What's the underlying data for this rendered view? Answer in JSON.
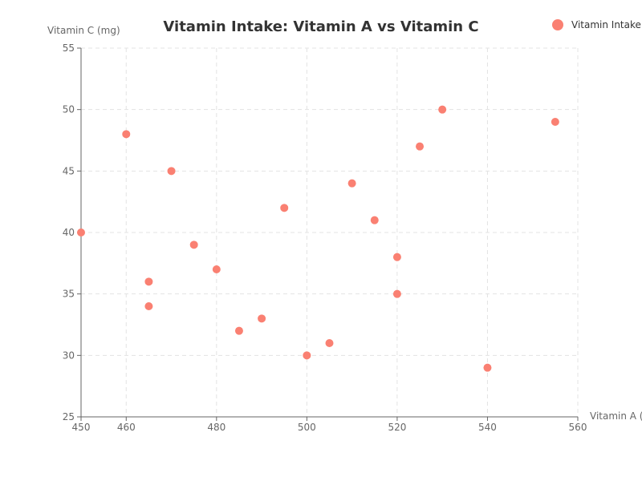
{
  "chart_data": {
    "type": "scatter",
    "title": "Vitamin Intake: Vitamin A vs Vitamin C",
    "xlabel": "Vitamin A (mcg)",
    "ylabel": "Vitamin C (mg)",
    "xlim": [
      450,
      560
    ],
    "ylim": [
      25,
      55
    ],
    "x_ticks": [
      450,
      460,
      480,
      500,
      520,
      540,
      560
    ],
    "y_ticks": [
      25,
      30,
      35,
      40,
      45,
      50,
      55
    ],
    "grid": true,
    "legend_position": "top-right",
    "series": [
      {
        "name": "Vitamin Intake",
        "color": "#fa8072",
        "points": [
          {
            "x": 450,
            "y": 40
          },
          {
            "x": 460,
            "y": 48
          },
          {
            "x": 465,
            "y": 36
          },
          {
            "x": 465,
            "y": 34
          },
          {
            "x": 470,
            "y": 45
          },
          {
            "x": 475,
            "y": 39
          },
          {
            "x": 480,
            "y": 37
          },
          {
            "x": 485,
            "y": 32
          },
          {
            "x": 490,
            "y": 33
          },
          {
            "x": 495,
            "y": 42
          },
          {
            "x": 500,
            "y": 30
          },
          {
            "x": 505,
            "y": 31
          },
          {
            "x": 510,
            "y": 44
          },
          {
            "x": 515,
            "y": 41
          },
          {
            "x": 520,
            "y": 38
          },
          {
            "x": 520,
            "y": 35
          },
          {
            "x": 525,
            "y": 47
          },
          {
            "x": 530,
            "y": 50
          },
          {
            "x": 540,
            "y": 29
          },
          {
            "x": 555,
            "y": 49
          }
        ]
      }
    ]
  }
}
